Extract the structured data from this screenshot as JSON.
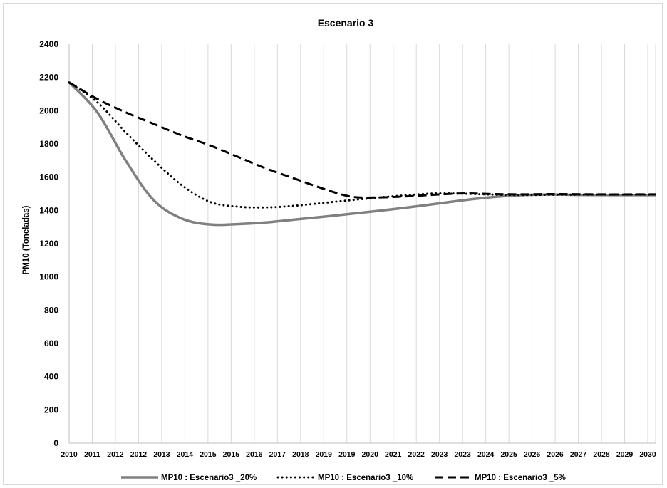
{
  "chart_data": {
    "type": "line",
    "title": "Escenario 3",
    "xlabel": "",
    "ylabel": "PM10 (Toneladas)",
    "ylim": [
      0,
      2400
    ],
    "yticks": [
      0,
      200,
      400,
      600,
      800,
      1000,
      1200,
      1400,
      1600,
      1800,
      2000,
      2200,
      2400
    ],
    "xlim": [
      2010,
      2030.75
    ],
    "xtick_labels": [
      "2010",
      "2011",
      "2012",
      "2012",
      "2013",
      "2014",
      "2015",
      "2015",
      "2016",
      "2017",
      "2018",
      "2019",
      "2019",
      "2020",
      "2021",
      "2022",
      "2023",
      "2023",
      "2024",
      "2025",
      "2026",
      "2026",
      "2027",
      "2028",
      "2029",
      "2030"
    ],
    "grid": "vertical",
    "legend_position": "bottom",
    "series": [
      {
        "name": "MP10 : Escenario3 _20%",
        "color": "#808080",
        "style": "solid",
        "x": [
          2010,
          2011,
          2012,
          2013,
          2014,
          2015,
          2016,
          2017,
          2018,
          2019,
          2020,
          2021,
          2022,
          2023,
          2024,
          2025,
          2026,
          2027,
          2028,
          2029,
          2030,
          2030.75
        ],
        "y": [
          2170,
          1990,
          1700,
          1460,
          1350,
          1315,
          1318,
          1328,
          1345,
          1362,
          1380,
          1398,
          1418,
          1440,
          1462,
          1480,
          1492,
          1495,
          1493,
          1492,
          1492,
          1492
        ]
      },
      {
        "name": "MP10 : Escenario3 _10%",
        "color": "#000000",
        "style": "dotted",
        "x": [
          2010,
          2011,
          2012,
          2013,
          2014,
          2015,
          2016,
          2017,
          2018,
          2019,
          2020,
          2021,
          2022,
          2023,
          2024,
          2025,
          2026,
          2027,
          2028,
          2029,
          2030,
          2030.75
        ],
        "y": [
          2170,
          2050,
          1870,
          1700,
          1550,
          1450,
          1422,
          1418,
          1428,
          1445,
          1462,
          1478,
          1492,
          1502,
          1500,
          1495,
          1492,
          1494,
          1495,
          1495,
          1495,
          1495
        ]
      },
      {
        "name": "MP10 : Escenario3 _5%",
        "color": "#000000",
        "style": "dashed",
        "x": [
          2010,
          2011,
          2012,
          2013,
          2014,
          2015,
          2016,
          2017,
          2018,
          2019,
          2020,
          2021,
          2022,
          2023,
          2024,
          2025,
          2026,
          2027,
          2028,
          2029,
          2030,
          2030.75
        ],
        "y": [
          2170,
          2070,
          1990,
          1920,
          1850,
          1790,
          1720,
          1650,
          1590,
          1530,
          1482,
          1478,
          1485,
          1495,
          1502,
          1498,
          1496,
          1498,
          1497,
          1496,
          1496,
          1496
        ]
      }
    ]
  }
}
